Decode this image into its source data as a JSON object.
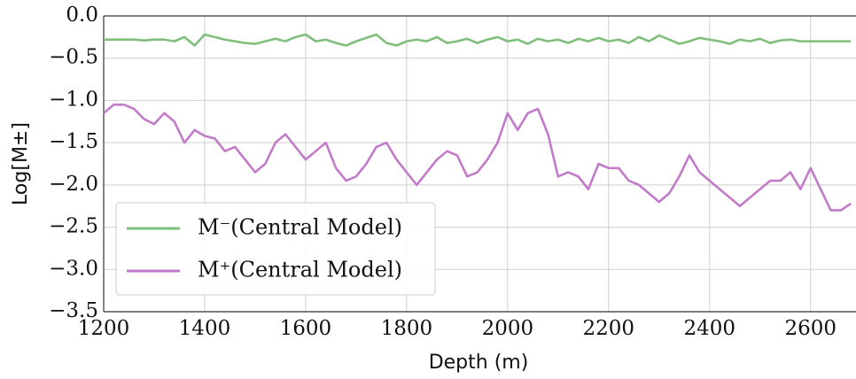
{
  "chart_data": {
    "type": "line",
    "xlabel": "Depth (m)",
    "ylabel": "Log[M±]",
    "x": [
      1200,
      1220,
      1240,
      1260,
      1280,
      1300,
      1320,
      1340,
      1360,
      1380,
      1400,
      1420,
      1440,
      1460,
      1480,
      1500,
      1520,
      1540,
      1560,
      1580,
      1600,
      1620,
      1640,
      1660,
      1680,
      1700,
      1720,
      1740,
      1760,
      1780,
      1800,
      1820,
      1840,
      1860,
      1880,
      1900,
      1920,
      1940,
      1960,
      1980,
      2000,
      2020,
      2040,
      2060,
      2080,
      2100,
      2120,
      2140,
      2160,
      2180,
      2200,
      2220,
      2240,
      2260,
      2280,
      2300,
      2320,
      2340,
      2360,
      2380,
      2400,
      2420,
      2440,
      2460,
      2480,
      2500,
      2520,
      2540,
      2560,
      2580,
      2600,
      2620,
      2640,
      2660,
      2680
    ],
    "series": [
      {
        "name": "M⁻(Central Model)",
        "color": "#7fbf7b",
        "values": [
          -0.28,
          -0.28,
          -0.28,
          -0.28,
          -0.29,
          -0.28,
          -0.28,
          -0.3,
          -0.25,
          -0.35,
          -0.22,
          -0.25,
          -0.28,
          -0.3,
          -0.32,
          -0.33,
          -0.3,
          -0.27,
          -0.3,
          -0.25,
          -0.22,
          -0.3,
          -0.28,
          -0.32,
          -0.35,
          -0.3,
          -0.26,
          -0.22,
          -0.32,
          -0.35,
          -0.3,
          -0.28,
          -0.3,
          -0.25,
          -0.32,
          -0.3,
          -0.27,
          -0.32,
          -0.28,
          -0.25,
          -0.3,
          -0.28,
          -0.33,
          -0.27,
          -0.3,
          -0.28,
          -0.32,
          -0.27,
          -0.3,
          -0.26,
          -0.3,
          -0.28,
          -0.32,
          -0.25,
          -0.3,
          -0.23,
          -0.28,
          -0.33,
          -0.3,
          -0.26,
          -0.28,
          -0.3,
          -0.33,
          -0.28,
          -0.3,
          -0.27,
          -0.32,
          -0.29,
          -0.28,
          -0.3,
          -0.3,
          -0.3,
          -0.3,
          -0.3,
          -0.3
        ]
      },
      {
        "name": "M⁺(Central Model)",
        "color": "#c27bc8",
        "values": [
          -1.15,
          -1.05,
          -1.05,
          -1.1,
          -1.22,
          -1.28,
          -1.15,
          -1.25,
          -1.5,
          -1.35,
          -1.42,
          -1.45,
          -1.6,
          -1.55,
          -1.7,
          -1.85,
          -1.75,
          -1.5,
          -1.4,
          -1.55,
          -1.7,
          -1.6,
          -1.5,
          -1.8,
          -1.95,
          -1.9,
          -1.75,
          -1.55,
          -1.5,
          -1.7,
          -1.85,
          -2.0,
          -1.85,
          -1.7,
          -1.6,
          -1.65,
          -1.9,
          -1.85,
          -1.7,
          -1.5,
          -1.15,
          -1.35,
          -1.15,
          -1.1,
          -1.4,
          -1.9,
          -1.85,
          -1.9,
          -2.05,
          -1.75,
          -1.8,
          -1.8,
          -1.95,
          -2.0,
          -2.1,
          -2.2,
          -2.1,
          -1.9,
          -1.65,
          -1.85,
          -1.95,
          -2.05,
          -2.15,
          -2.25,
          -2.15,
          -2.05,
          -1.95,
          -1.95,
          -1.85,
          -2.05,
          -1.8,
          -2.05,
          -2.3,
          -2.3,
          -2.22
        ]
      }
    ],
    "xlim": [
      1200,
      2690
    ],
    "ylim": [
      -3.5,
      0
    ],
    "xticks": [
      1200,
      1400,
      1600,
      1800,
      2000,
      2200,
      2400,
      2600
    ],
    "yticks": [
      {
        "value": 0,
        "label": "0.0"
      },
      {
        "value": -0.5,
        "label": "−0.5"
      },
      {
        "value": -1,
        "label": "−1.0"
      },
      {
        "value": -1.5,
        "label": "−1.5"
      },
      {
        "value": -2,
        "label": "−2.0"
      },
      {
        "value": -2.5,
        "label": "−2.5"
      },
      {
        "value": -3,
        "label": "−3.0"
      },
      {
        "value": -3.5,
        "label": "−3.5"
      }
    ],
    "grid": true,
    "legend": "lower left"
  }
}
